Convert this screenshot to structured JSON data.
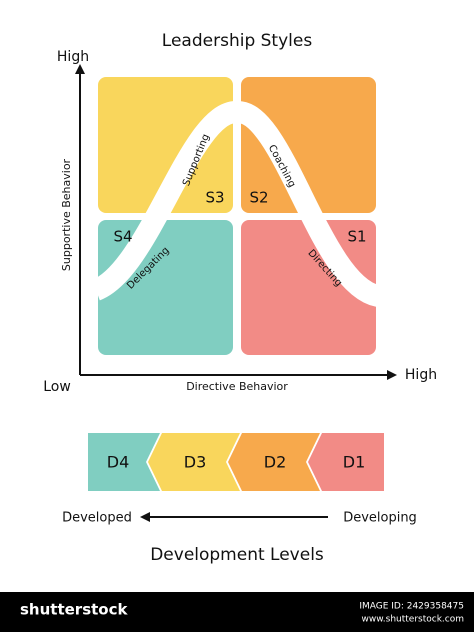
{
  "title": "Leadership Styles",
  "axes": {
    "y_label": "Supportive Behavior",
    "y_high": "High",
    "x_label": "Directive Behavior",
    "origin": "Low",
    "x_high": "High"
  },
  "quadrants": [
    {
      "code": "S3",
      "style": "Supporting"
    },
    {
      "code": "S2",
      "style": "Coaching"
    },
    {
      "code": "S4",
      "style": "Delegating"
    },
    {
      "code": "S1",
      "style": "Directing"
    }
  ],
  "development": {
    "levels": [
      "D4",
      "D3",
      "D2",
      "D1"
    ],
    "left": "Developed",
    "right": "Developing",
    "title": "Development Levels"
  },
  "footer": {
    "brand": "shutterstock",
    "image_id": "IMAGE ID: 2429358475",
    "url": "www.shutterstock.com"
  }
}
